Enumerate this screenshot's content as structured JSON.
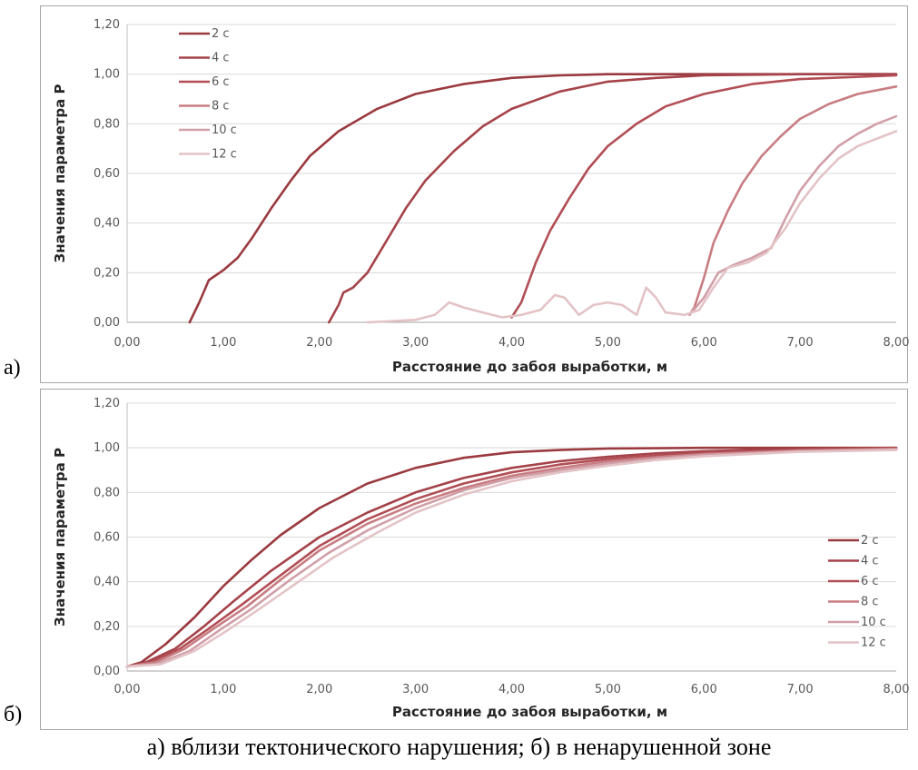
{
  "panels": {
    "a": "а)",
    "b": "б)"
  },
  "caption": "а) вблизи тектонического нарушения; б) в ненарушенной зоне",
  "colors": [
    "#9a3a3f",
    "#a5434a",
    "#b24e55",
    "#c87d82",
    "#d19fa8",
    "#e3c3c6"
  ],
  "chart_data": [
    {
      "type": "line",
      "title": "",
      "xlabel": "Расстояние до забоя выработки, м",
      "ylabel": "Значения параметра P",
      "xlim": [
        0,
        8
      ],
      "ylim": [
        0,
        1.2
      ],
      "xticks": [
        "0,00",
        "1,00",
        "2,00",
        "3,00",
        "4,00",
        "5,00",
        "6,00",
        "7,00",
        "8,00"
      ],
      "yticks": [
        "0,00",
        "0,20",
        "0,40",
        "0,60",
        "0,80",
        "1,00",
        "1,20"
      ],
      "grid": true,
      "legend_position": "top-left",
      "series": [
        {
          "name": "2 с",
          "points": [
            [
              0.65,
              0
            ],
            [
              0.75,
              0.08
            ],
            [
              0.85,
              0.17
            ],
            [
              1.0,
              0.21
            ],
            [
              1.15,
              0.26
            ],
            [
              1.3,
              0.34
            ],
            [
              1.5,
              0.46
            ],
            [
              1.7,
              0.57
            ],
            [
              1.9,
              0.67
            ],
            [
              2.2,
              0.77
            ],
            [
              2.6,
              0.86
            ],
            [
              3.0,
              0.92
            ],
            [
              3.5,
              0.96
            ],
            [
              4.0,
              0.985
            ],
            [
              4.5,
              0.995
            ],
            [
              5.0,
              1.0
            ],
            [
              8.0,
              1.0
            ]
          ]
        },
        {
          "name": "4 с",
          "points": [
            [
              2.1,
              0
            ],
            [
              2.2,
              0.07
            ],
            [
              2.25,
              0.12
            ],
            [
              2.35,
              0.14
            ],
            [
              2.5,
              0.2
            ],
            [
              2.7,
              0.33
            ],
            [
              2.9,
              0.46
            ],
            [
              3.1,
              0.57
            ],
            [
              3.4,
              0.69
            ],
            [
              3.7,
              0.79
            ],
            [
              4.0,
              0.86
            ],
            [
              4.5,
              0.93
            ],
            [
              5.0,
              0.97
            ],
            [
              5.5,
              0.985
            ],
            [
              6.0,
              0.995
            ],
            [
              7.0,
              1.0
            ],
            [
              8.0,
              1.0
            ]
          ]
        },
        {
          "name": "6 с",
          "points": [
            [
              4.0,
              0.02
            ],
            [
              4.1,
              0.08
            ],
            [
              4.25,
              0.24
            ],
            [
              4.4,
              0.37
            ],
            [
              4.6,
              0.5
            ],
            [
              4.8,
              0.62
            ],
            [
              5.0,
              0.71
            ],
            [
              5.3,
              0.8
            ],
            [
              5.6,
              0.87
            ],
            [
              6.0,
              0.92
            ],
            [
              6.5,
              0.96
            ],
            [
              7.0,
              0.98
            ],
            [
              8.0,
              0.995
            ]
          ]
        },
        {
          "name": "8 с",
          "points": [
            [
              5.85,
              0.03
            ],
            [
              5.9,
              0.06
            ],
            [
              6.0,
              0.18
            ],
            [
              6.1,
              0.32
            ],
            [
              6.25,
              0.45
            ],
            [
              6.4,
              0.56
            ],
            [
              6.6,
              0.67
            ],
            [
              6.8,
              0.75
            ],
            [
              7.0,
              0.82
            ],
            [
              7.3,
              0.88
            ],
            [
              7.6,
              0.92
            ],
            [
              8.0,
              0.95
            ]
          ]
        },
        {
          "name": "10 с",
          "points": [
            [
              5.85,
              0.03
            ],
            [
              6.0,
              0.1
            ],
            [
              6.15,
              0.2
            ],
            [
              6.3,
              0.23
            ],
            [
              6.5,
              0.26
            ],
            [
              6.7,
              0.3
            ],
            [
              6.85,
              0.42
            ],
            [
              7.0,
              0.53
            ],
            [
              7.2,
              0.63
            ],
            [
              7.4,
              0.71
            ],
            [
              7.6,
              0.76
            ],
            [
              7.8,
              0.8
            ],
            [
              8.0,
              0.83
            ]
          ]
        },
        {
          "name": "12 с",
          "points": [
            [
              2.5,
              0.0
            ],
            [
              3.0,
              0.01
            ],
            [
              3.2,
              0.03
            ],
            [
              3.35,
              0.08
            ],
            [
              3.5,
              0.06
            ],
            [
              3.7,
              0.04
            ],
            [
              3.9,
              0.02
            ],
            [
              4.1,
              0.03
            ],
            [
              4.3,
              0.05
            ],
            [
              4.45,
              0.11
            ],
            [
              4.55,
              0.1
            ],
            [
              4.7,
              0.03
            ],
            [
              4.85,
              0.07
            ],
            [
              5.0,
              0.08
            ],
            [
              5.15,
              0.07
            ],
            [
              5.3,
              0.03
            ],
            [
              5.4,
              0.14
            ],
            [
              5.5,
              0.1
            ],
            [
              5.6,
              0.04
            ],
            [
              5.8,
              0.03
            ],
            [
              5.95,
              0.05
            ],
            [
              6.1,
              0.14
            ],
            [
              6.25,
              0.22
            ],
            [
              6.45,
              0.24
            ],
            [
              6.65,
              0.28
            ],
            [
              6.85,
              0.38
            ],
            [
              7.0,
              0.48
            ],
            [
              7.2,
              0.58
            ],
            [
              7.4,
              0.66
            ],
            [
              7.6,
              0.71
            ],
            [
              7.8,
              0.74
            ],
            [
              8.0,
              0.77
            ]
          ]
        }
      ]
    },
    {
      "type": "line",
      "title": "",
      "xlabel": "Расстояние до забоя выработки, м",
      "ylabel": "Значения параметра P",
      "xlim": [
        0,
        8
      ],
      "ylim": [
        0,
        1.2
      ],
      "xticks": [
        "0,00",
        "1,00",
        "2,00",
        "3,00",
        "4,00",
        "5,00",
        "6,00",
        "7,00",
        "8,00"
      ],
      "yticks": [
        "0,00",
        "0,20",
        "0,40",
        "0,60",
        "0,80",
        "1,00",
        "1,20"
      ],
      "grid": true,
      "legend_position": "right",
      "series": [
        {
          "name": "2 с",
          "points": [
            [
              0,
              0.02
            ],
            [
              0.15,
              0.04
            ],
            [
              0.4,
              0.12
            ],
            [
              0.7,
              0.24
            ],
            [
              1.0,
              0.38
            ],
            [
              1.3,
              0.5
            ],
            [
              1.6,
              0.61
            ],
            [
              2.0,
              0.73
            ],
            [
              2.5,
              0.84
            ],
            [
              3.0,
              0.91
            ],
            [
              3.5,
              0.955
            ],
            [
              4.0,
              0.98
            ],
            [
              4.5,
              0.99
            ],
            [
              5.0,
              0.997
            ],
            [
              6.0,
              1.0
            ],
            [
              8.0,
              1.0
            ]
          ]
        },
        {
          "name": "4 с",
          "points": [
            [
              0,
              0.02
            ],
            [
              0.2,
              0.04
            ],
            [
              0.5,
              0.1
            ],
            [
              0.8,
              0.2
            ],
            [
              1.1,
              0.31
            ],
            [
              1.5,
              0.45
            ],
            [
              2.0,
              0.6
            ],
            [
              2.5,
              0.71
            ],
            [
              3.0,
              0.8
            ],
            [
              3.5,
              0.865
            ],
            [
              4.0,
              0.91
            ],
            [
              4.5,
              0.94
            ],
            [
              5.0,
              0.96
            ],
            [
              5.5,
              0.975
            ],
            [
              6.0,
              0.985
            ],
            [
              7.0,
              0.995
            ],
            [
              8.0,
              1.0
            ]
          ]
        },
        {
          "name": "6 с",
          "points": [
            [
              0,
              0.02
            ],
            [
              0.25,
              0.04
            ],
            [
              0.55,
              0.1
            ],
            [
              0.85,
              0.19
            ],
            [
              1.2,
              0.3
            ],
            [
              1.6,
              0.43
            ],
            [
              2.0,
              0.56
            ],
            [
              2.5,
              0.68
            ],
            [
              3.0,
              0.77
            ],
            [
              3.5,
              0.84
            ],
            [
              4.0,
              0.89
            ],
            [
              4.5,
              0.925
            ],
            [
              5.0,
              0.95
            ],
            [
              5.5,
              0.965
            ],
            [
              6.0,
              0.978
            ],
            [
              7.0,
              0.99
            ],
            [
              8.0,
              0.998
            ]
          ]
        },
        {
          "name": "8 с",
          "points": [
            [
              0,
              0.02
            ],
            [
              0.3,
              0.04
            ],
            [
              0.6,
              0.1
            ],
            [
              0.9,
              0.19
            ],
            [
              1.25,
              0.29
            ],
            [
              1.6,
              0.41
            ],
            [
              2.0,
              0.54
            ],
            [
              2.5,
              0.66
            ],
            [
              3.0,
              0.75
            ],
            [
              3.5,
              0.82
            ],
            [
              4.0,
              0.875
            ],
            [
              4.5,
              0.91
            ],
            [
              5.0,
              0.94
            ],
            [
              5.5,
              0.958
            ],
            [
              6.0,
              0.972
            ],
            [
              7.0,
              0.988
            ],
            [
              8.0,
              0.995
            ]
          ]
        },
        {
          "name": "10 с",
          "points": [
            [
              0,
              0.02
            ],
            [
              0.3,
              0.03
            ],
            [
              0.65,
              0.09
            ],
            [
              0.95,
              0.18
            ],
            [
              1.3,
              0.28
            ],
            [
              1.7,
              0.41
            ],
            [
              2.1,
              0.53
            ],
            [
              2.5,
              0.63
            ],
            [
              3.0,
              0.73
            ],
            [
              3.5,
              0.81
            ],
            [
              4.0,
              0.865
            ],
            [
              4.5,
              0.9
            ],
            [
              5.0,
              0.93
            ],
            [
              5.5,
              0.952
            ],
            [
              6.0,
              0.968
            ],
            [
              7.0,
              0.985
            ],
            [
              8.0,
              0.993
            ]
          ]
        },
        {
          "name": "12 с",
          "points": [
            [
              0,
              0.02
            ],
            [
              0.35,
              0.03
            ],
            [
              0.7,
              0.09
            ],
            [
              1.0,
              0.17
            ],
            [
              1.35,
              0.27
            ],
            [
              1.75,
              0.39
            ],
            [
              2.15,
              0.51
            ],
            [
              2.6,
              0.62
            ],
            [
              3.0,
              0.71
            ],
            [
              3.5,
              0.79
            ],
            [
              4.0,
              0.85
            ],
            [
              4.5,
              0.89
            ],
            [
              5.0,
              0.92
            ],
            [
              5.5,
              0.945
            ],
            [
              6.0,
              0.962
            ],
            [
              7.0,
              0.982
            ],
            [
              8.0,
              0.99
            ]
          ]
        }
      ]
    }
  ]
}
